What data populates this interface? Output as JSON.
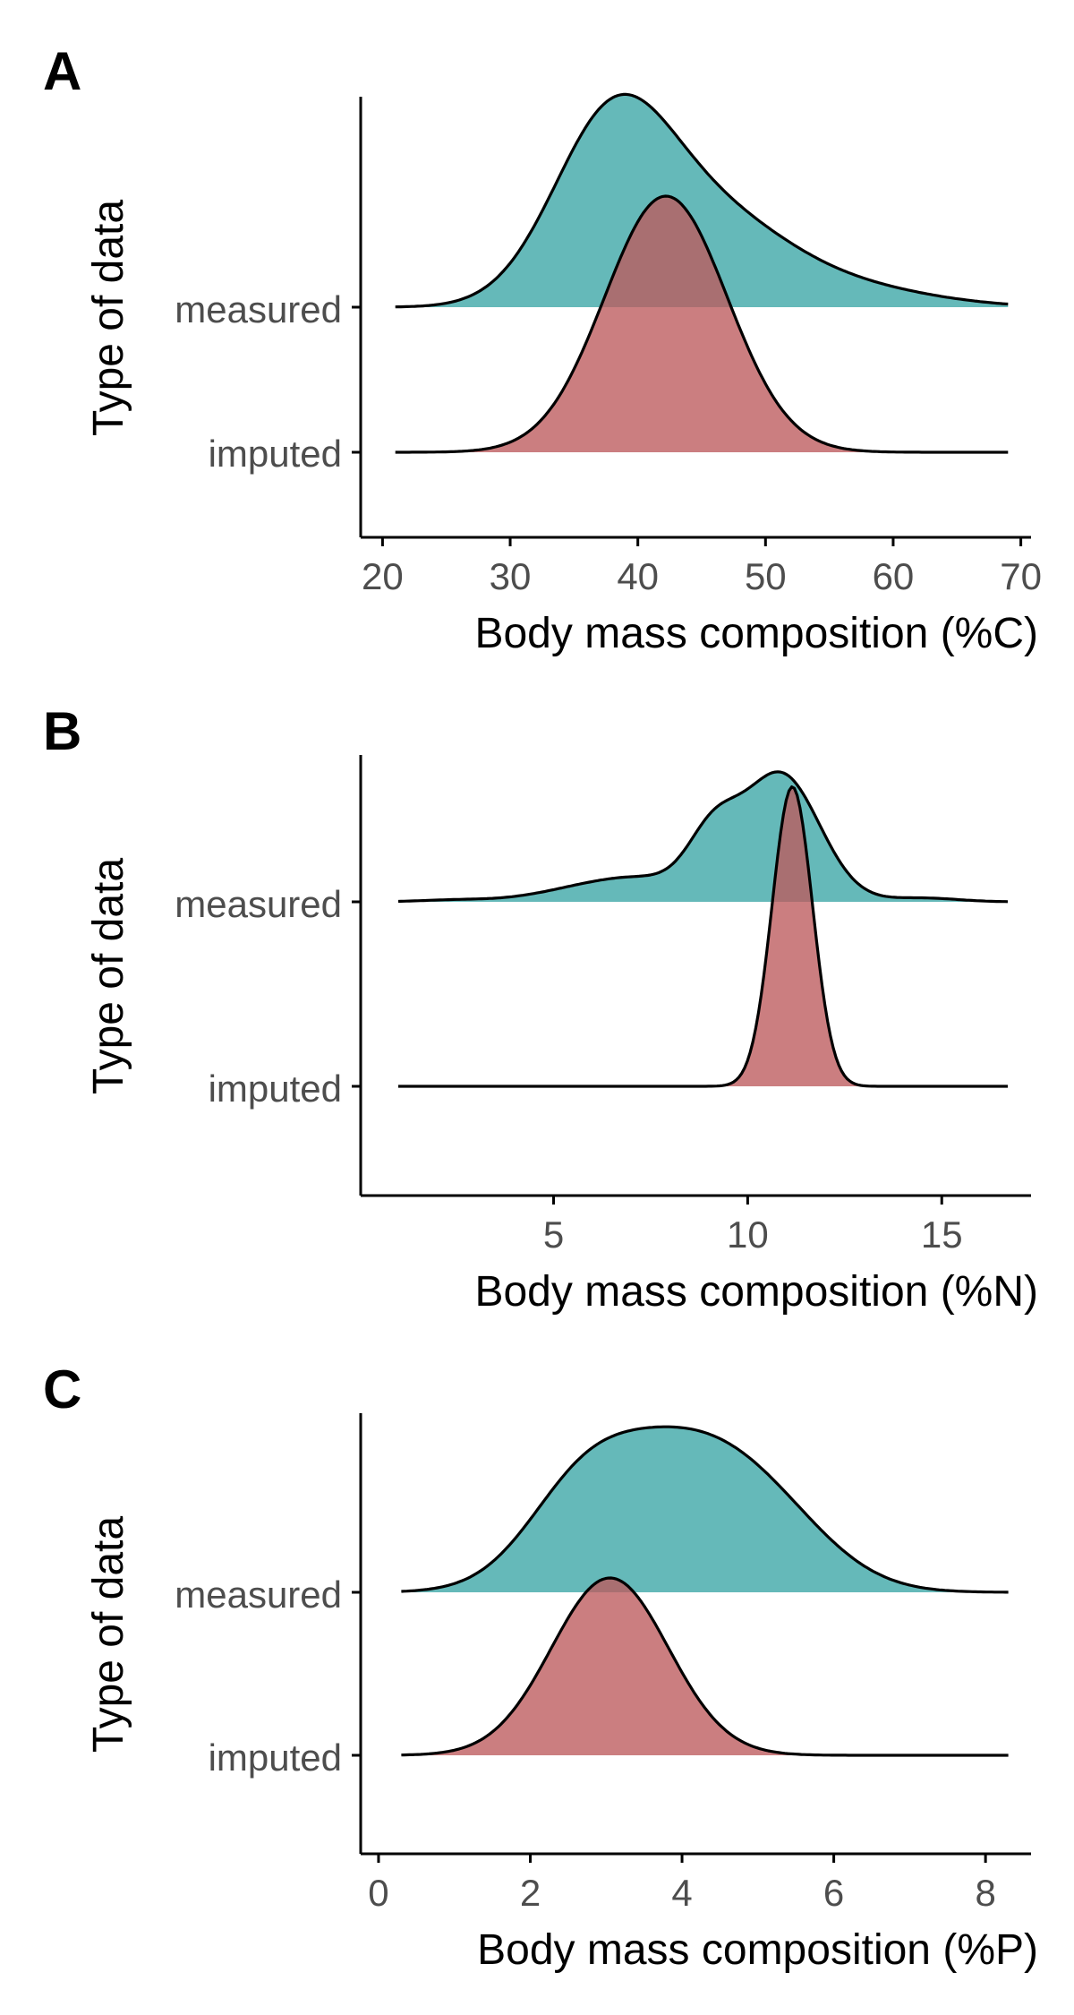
{
  "colors": {
    "measured": "#3aa5a5",
    "imputed": "#bd5a5c",
    "outline": "#000000",
    "axis": "#000000",
    "tick_text": "#4d4d4d"
  },
  "chart_data": [
    {
      "type": "ridgeline",
      "panel": "A",
      "xlabel": "Body mass composition (%C)",
      "ylabel": "Type of data",
      "xlim": [
        18.5,
        70.8
      ],
      "xticks": [
        20,
        30,
        40,
        50,
        60,
        70
      ],
      "x_range": [
        21,
        69
      ],
      "categories": [
        "imputed",
        "measured"
      ],
      "series": [
        {
          "name": "measured",
          "peak": 0.54,
          "components": [
            [
              38,
              4.7,
              1.0
            ],
            [
              46,
              5.5,
              0.38
            ],
            [
              53,
              7,
              0.12
            ],
            [
              60,
              6,
              0.025
            ]
          ]
        },
        {
          "name": "imputed",
          "peak": 0.65,
          "components": [
            [
              42.2,
              4.8,
              1.0
            ]
          ]
        }
      ]
    },
    {
      "type": "ridgeline",
      "panel": "B",
      "xlabel": "Body mass composition (%N)",
      "ylabel": "Type of data",
      "xlim": [
        0.1,
        17.3
      ],
      "xticks": [
        5,
        10,
        15
      ],
      "x_range": [
        1,
        16.7
      ],
      "categories": [
        "imputed",
        "measured"
      ],
      "series": [
        {
          "name": "measured",
          "peak": 0.33,
          "components": [
            [
              10.85,
              1.0,
              1.0
            ],
            [
              9.1,
              0.65,
              0.42
            ],
            [
              7.3,
              1.4,
              0.18
            ],
            [
              5.3,
              1.2,
              0.05
            ],
            [
              2.5,
              0.9,
              0.015
            ],
            [
              14.5,
              0.9,
              0.03
            ]
          ]
        },
        {
          "name": "imputed",
          "peak": 0.76,
          "components": [
            [
              11.15,
              0.52,
              1.0
            ]
          ]
        }
      ]
    },
    {
      "type": "ridgeline",
      "panel": "C",
      "xlabel": "Body mass composition (%P)",
      "ylabel": "Type of data",
      "xlim": [
        -0.2,
        8.6
      ],
      "xticks": [
        0,
        2,
        4,
        6,
        8
      ],
      "x_range": [
        0.3,
        8.3
      ],
      "categories": [
        "imputed",
        "measured"
      ],
      "series": [
        {
          "name": "measured",
          "peak": 0.42,
          "components": [
            [
              3.9,
              1.1,
              1.0
            ],
            [
              2.6,
              0.7,
              0.42
            ],
            [
              5.2,
              0.85,
              0.3
            ]
          ]
        },
        {
          "name": "imputed",
          "peak": 0.45,
          "components": [
            [
              3.05,
              0.77,
              1.0
            ]
          ]
        }
      ]
    }
  ]
}
